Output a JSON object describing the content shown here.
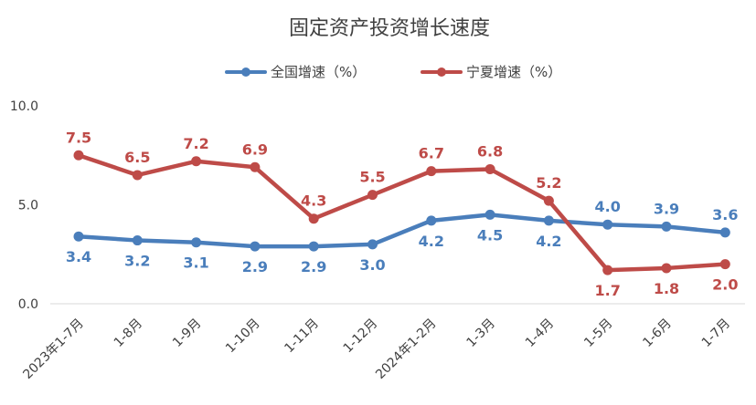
{
  "chart_data": {
    "type": "line",
    "title": "固定资产投资增长速度",
    "categories": [
      "2023年1-7月",
      "1-8月",
      "1-9月",
      "1-10月",
      "1-11月",
      "1-12月",
      "2024年1-2月",
      "1-3月",
      "1-4月",
      "1-5月",
      "1-6月",
      "1-7月"
    ],
    "series": [
      {
        "name": "全国增速（%）",
        "color": "#4a7ebb",
        "values": [
          3.4,
          3.2,
          3.1,
          2.9,
          2.9,
          3.0,
          4.2,
          4.5,
          4.2,
          4.0,
          3.9,
          3.6
        ]
      },
      {
        "name": "宁夏增速（%）",
        "color": "#be4b48",
        "values": [
          7.5,
          6.5,
          7.2,
          6.9,
          4.3,
          5.5,
          6.7,
          6.8,
          5.2,
          1.7,
          1.8,
          2.0
        ]
      }
    ],
    "ylim": [
      0,
      10
    ],
    "yticks": [
      "0.0",
      "5.0",
      "10.0"
    ],
    "legend_position": "top-center",
    "xlabel": "",
    "ylabel": ""
  }
}
